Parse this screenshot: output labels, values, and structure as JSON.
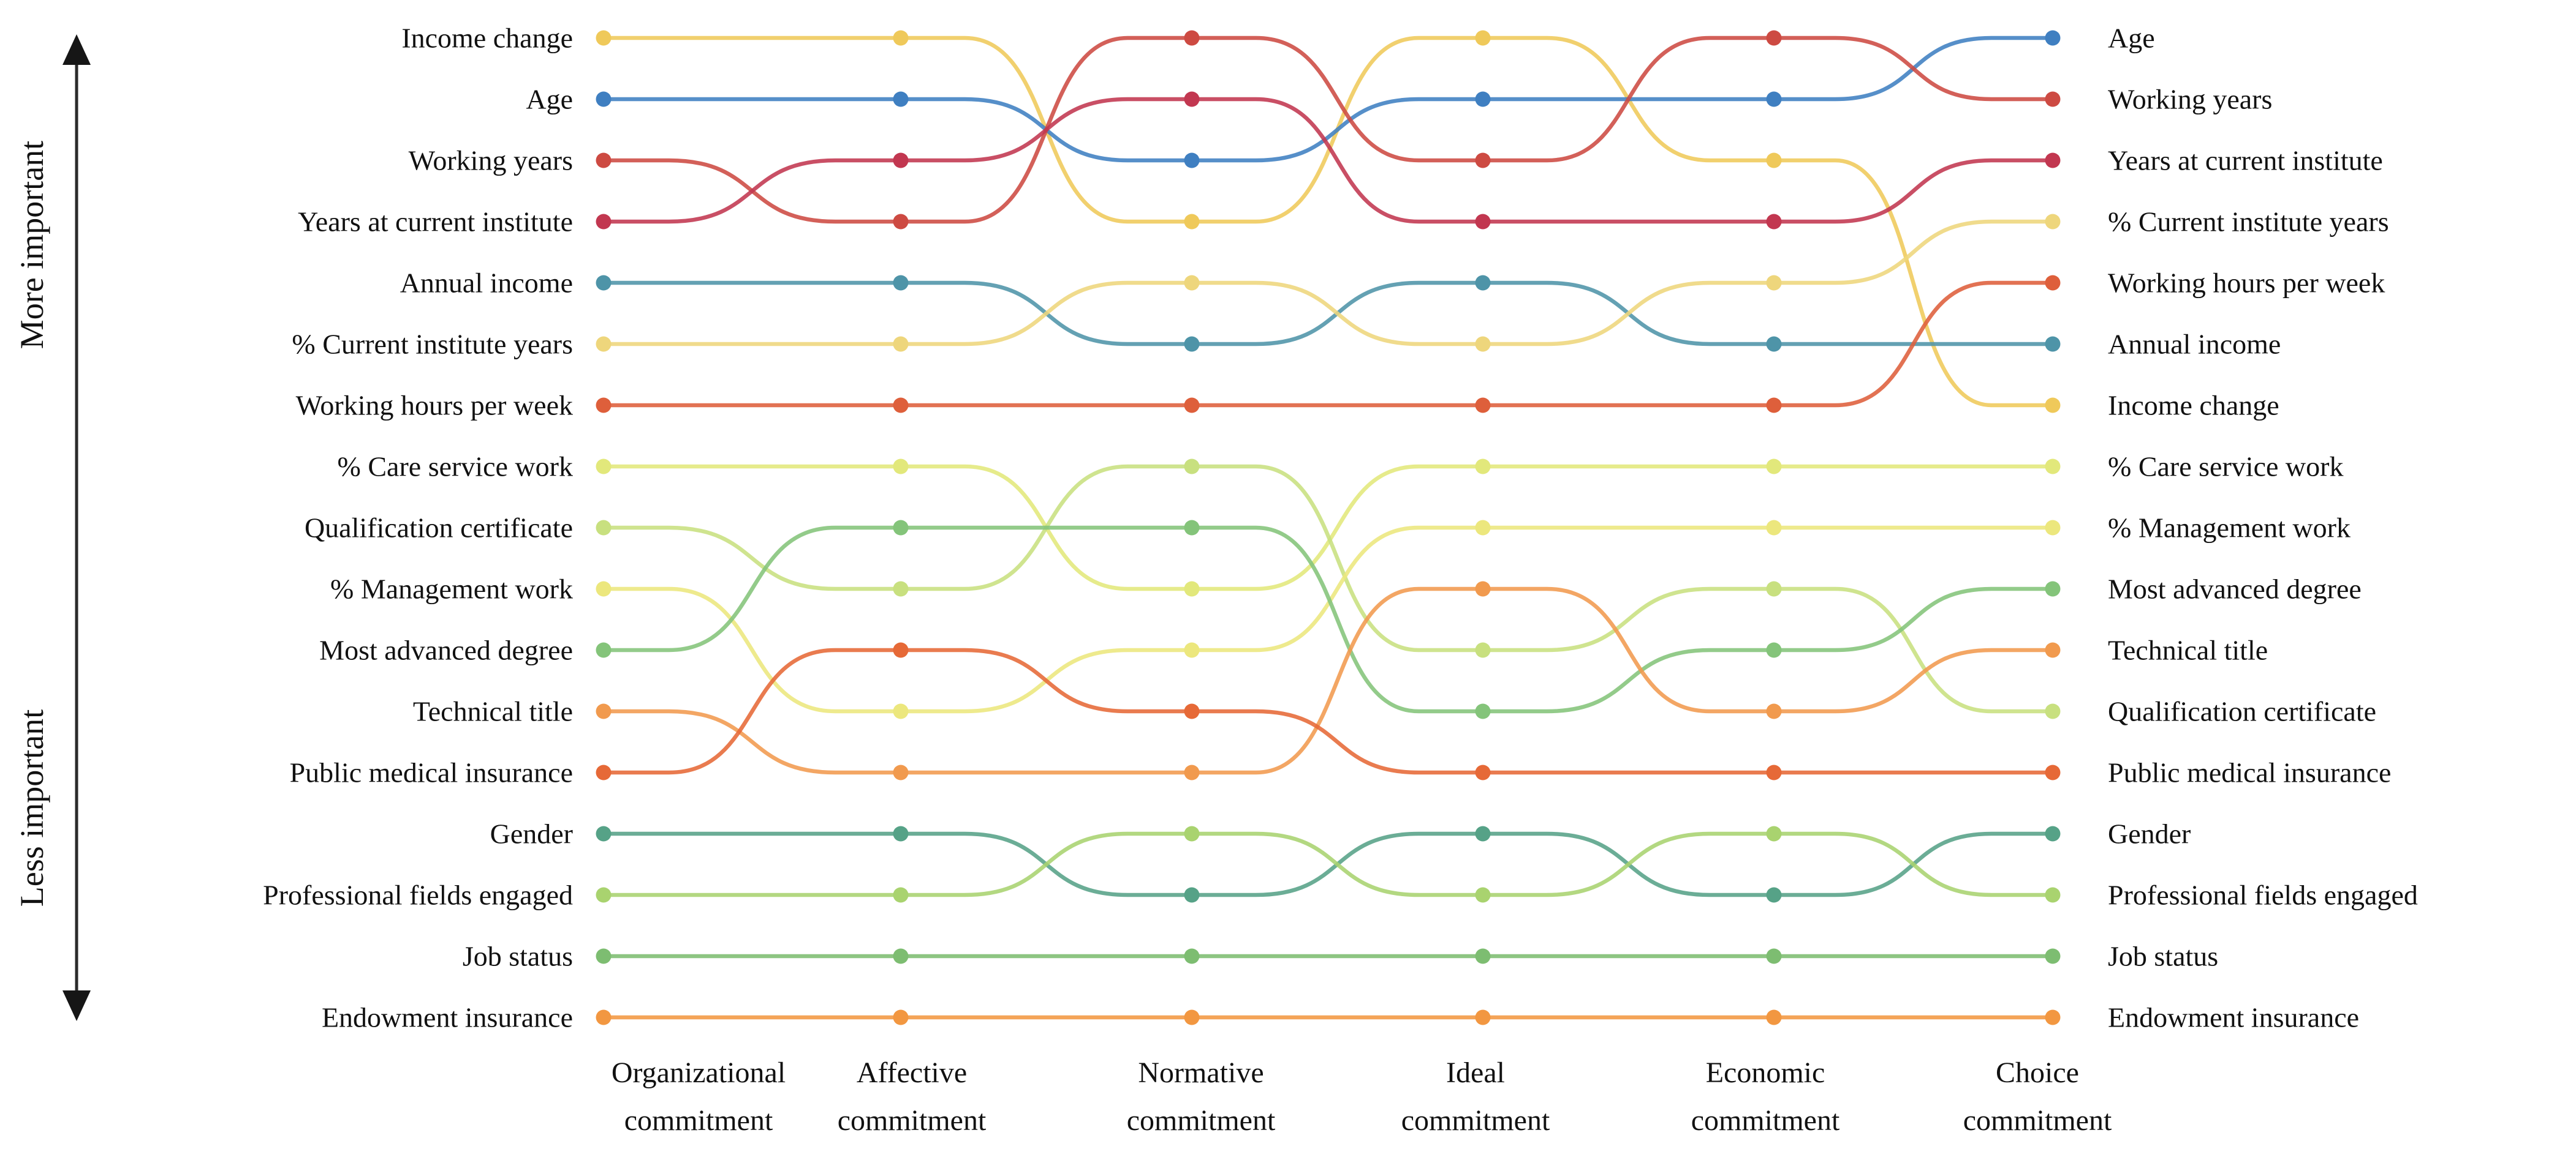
{
  "chart_data": {
    "type": "line",
    "subtype": "bump-rank-chart",
    "title": "",
    "n_ranks": 17,
    "rank_axis": {
      "best": "top",
      "top_annotation": "More important",
      "bottom_annotation": "Less important"
    },
    "legend": "none",
    "grid": false,
    "columns": [
      "Organizational commitment",
      "Affective commitment",
      "Normative commitment",
      "Ideal commitment",
      "Economic commitment",
      "Choice commitment"
    ],
    "axis_annotations": {
      "top": "More important",
      "bottom": "Less important"
    },
    "features": [
      {
        "name": "Income change",
        "color": "#efc95a",
        "ranks": [
          1,
          1,
          4,
          1,
          3,
          7
        ]
      },
      {
        "name": "Age",
        "color": "#3f7fc1",
        "ranks": [
          2,
          2,
          3,
          2,
          2,
          1
        ]
      },
      {
        "name": "Working years",
        "color": "#cd4a42",
        "ranks": [
          3,
          4,
          1,
          3,
          1,
          2
        ]
      },
      {
        "name": "Years at current institute",
        "color": "#c23750",
        "ranks": [
          4,
          3,
          2,
          4,
          4,
          3
        ]
      },
      {
        "name": "Annual income",
        "color": "#4e94a8",
        "ranks": [
          5,
          5,
          6,
          5,
          6,
          6
        ]
      },
      {
        "name": "% Current institute years",
        "color": "#eed67c",
        "ranks": [
          6,
          6,
          5,
          6,
          5,
          4
        ]
      },
      {
        "name": "Working hours per week",
        "color": "#de5f3b",
        "ranks": [
          7,
          7,
          7,
          7,
          7,
          5
        ]
      },
      {
        "name": "% Care service work",
        "color": "#e2e87b",
        "ranks": [
          8,
          8,
          10,
          8,
          8,
          8
        ]
      },
      {
        "name": "Qualification certificate",
        "color": "#c8e07f",
        "ranks": [
          9,
          10,
          8,
          11,
          10,
          12
        ]
      },
      {
        "name": "% Management work",
        "color": "#ece77d",
        "ranks": [
          10,
          12,
          11,
          9,
          9,
          9
        ]
      },
      {
        "name": "Most advanced degree",
        "color": "#84c47a",
        "ranks": [
          11,
          9,
          9,
          12,
          11,
          10
        ]
      },
      {
        "name": "Technical title",
        "color": "#f19a4e",
        "ranks": [
          12,
          13,
          13,
          10,
          12,
          11
        ]
      },
      {
        "name": "Public medical insurance",
        "color": "#e66937",
        "ranks": [
          13,
          11,
          12,
          13,
          13,
          13
        ]
      },
      {
        "name": "Gender",
        "color": "#56a287",
        "ranks": [
          14,
          14,
          15,
          14,
          15,
          14
        ]
      },
      {
        "name": "Professional fields engaged",
        "color": "#a9d36f",
        "ranks": [
          15,
          15,
          14,
          15,
          14,
          15
        ]
      },
      {
        "name": "Job status",
        "color": "#7dbd71",
        "ranks": [
          16,
          16,
          16,
          16,
          16,
          16
        ]
      },
      {
        "name": "Endowment insurance",
        "color": "#f29741",
        "ranks": [
          17,
          17,
          17,
          17,
          17,
          17
        ]
      }
    ]
  }
}
